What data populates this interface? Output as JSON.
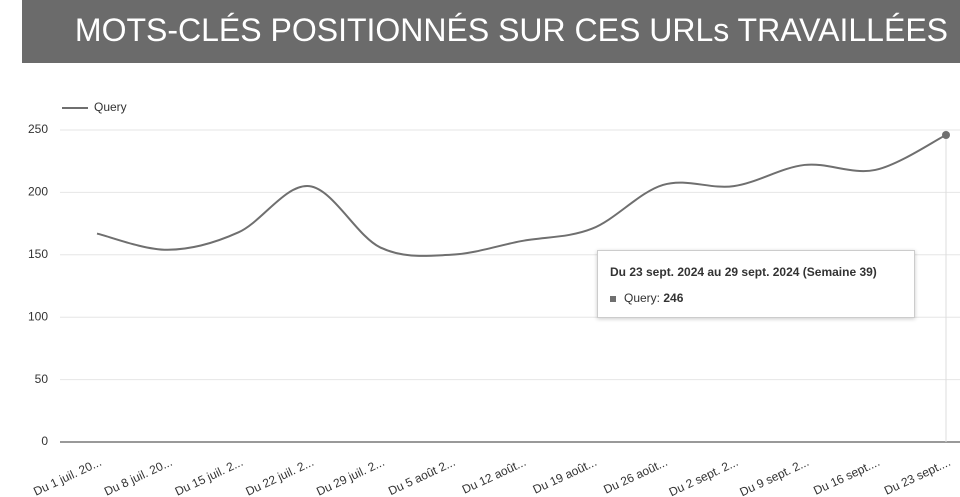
{
  "chart_data": {
    "type": "line",
    "title": "MOTS-CLÉS POSITIONNÉS SUR CES URLs TRAVAILLÉES",
    "categories": [
      "Du 1 juil. 20...",
      "Du 8 juil. 20...",
      "Du 15 juil. 2...",
      "Du 22 juil. 2...",
      "Du 29 juil. 2...",
      "Du 5 août 2...",
      "Du 12 août...",
      "Du 19 août...",
      "Du 26 août...",
      "Du 2 sept. 2...",
      "Du 9 sept. 2...",
      "Du 16 sept....",
      "Du 23 sept...."
    ],
    "series": [
      {
        "name": "Query",
        "color": "#6f6f6f",
        "values": [
          167,
          154,
          168,
          205,
          156,
          150,
          161,
          171,
          206,
          205,
          222,
          218,
          246
        ]
      }
    ],
    "ylim": [
      0,
      250
    ],
    "yticks": [
      0,
      50,
      100,
      150,
      200,
      250
    ],
    "grid": true,
    "legend": "top-left",
    "tooltip_title": "Du 23 sept. 2024 au 29 sept. 2024 (Semaine 39)",
    "tooltip_label": "Query:"
  }
}
